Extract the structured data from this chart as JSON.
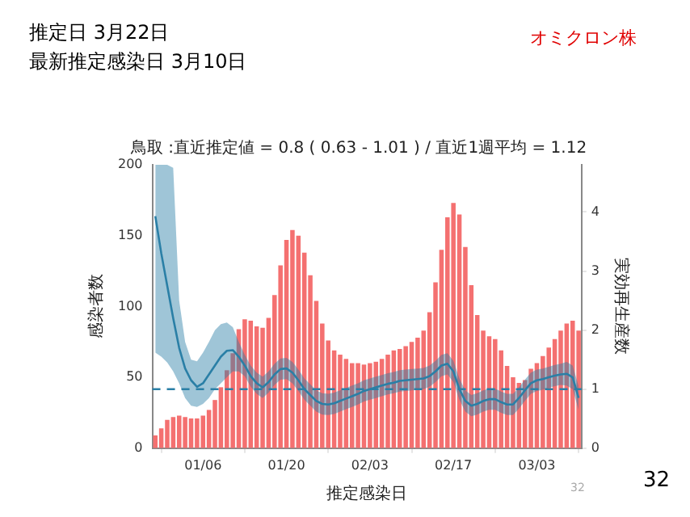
{
  "chart_data": {
    "type": "bar",
    "title": "鳥取 :直近推定値 = 0.8 ( 0.63 - 1.01 ) / 直近1週平均 = 1.12",
    "xlabel": "推定感染日",
    "ylabel": "感染者数",
    "y2label": "実効再生産数",
    "annotations": [
      "推定日  3月22日",
      "最新推定感染日  3月10日",
      "オミクロン株",
      "32",
      "32"
    ],
    "categories": [
      null,
      null,
      null,
      null,
      null,
      null,
      null,
      null,
      "01/06",
      null,
      null,
      null,
      null,
      null,
      null,
      null,
      null,
      null,
      null,
      null,
      null,
      null,
      "01/20",
      null,
      null,
      null,
      null,
      null,
      null,
      null,
      null,
      null,
      null,
      null,
      null,
      null,
      "02/03",
      null,
      null,
      null,
      null,
      null,
      null,
      null,
      null,
      null,
      null,
      null,
      null,
      null,
      "02/17",
      null,
      null,
      null,
      null,
      null,
      null,
      null,
      null,
      null,
      null,
      null,
      null,
      null,
      "03/03",
      null,
      null,
      null,
      null,
      null,
      null,
      null
    ],
    "series": [
      {
        "color": "#f47070",
        "values": [
          9,
          14,
          20,
          22,
          23,
          22,
          21,
          21,
          23,
          27,
          34,
          43,
          55,
          67,
          84,
          91,
          90,
          86,
          85,
          92,
          108,
          129,
          147,
          154,
          150,
          138,
          122,
          104,
          88,
          76,
          69,
          66,
          63,
          60,
          60,
          59,
          60,
          61,
          63,
          66,
          69,
          70,
          72,
          75,
          78,
          83,
          96,
          117,
          140,
          163,
          173,
          165,
          142,
          115,
          94,
          83,
          79,
          77,
          69,
          58,
          50,
          46,
          48,
          56,
          60,
          65,
          71,
          77,
          83,
          88,
          90,
          83
        ]
      },
      {
        "type": "line",
        "axis": "y2",
        "color": "#2a7fa6",
        "values": [
          3.93,
          3.3,
          2.75,
          2.2,
          1.7,
          1.35,
          1.15,
          1.04,
          1.1,
          1.25,
          1.4,
          1.55,
          1.65,
          1.66,
          1.55,
          1.4,
          1.22,
          1.1,
          1.03,
          1.12,
          1.25,
          1.34,
          1.35,
          1.28,
          1.15,
          1.0,
          0.9,
          0.8,
          0.75,
          0.74,
          0.76,
          0.8,
          0.84,
          0.88,
          0.92,
          0.97,
          1.0,
          1.03,
          1.06,
          1.09,
          1.11,
          1.14,
          1.15,
          1.16,
          1.17,
          1.18,
          1.22,
          1.3,
          1.4,
          1.43,
          1.3,
          1.0,
          0.8,
          0.72,
          0.75,
          0.8,
          0.83,
          0.83,
          0.78,
          0.74,
          0.74,
          0.85,
          0.98,
          1.1,
          1.15,
          1.17,
          1.2,
          1.23,
          1.25,
          1.26,
          1.2,
          0.85
        ],
        "lower": [
          1.62,
          1.55,
          1.45,
          1.3,
          1.1,
          0.85,
          0.72,
          0.7,
          0.75,
          0.85,
          1.0,
          1.1,
          1.2,
          1.3,
          1.3,
          1.22,
          1.04,
          0.92,
          0.85,
          0.94,
          1.07,
          1.16,
          1.17,
          1.1,
          0.97,
          0.82,
          0.72,
          0.62,
          0.57,
          0.56,
          0.58,
          0.62,
          0.66,
          0.7,
          0.74,
          0.79,
          0.82,
          0.85,
          0.88,
          0.91,
          0.93,
          0.96,
          0.97,
          0.98,
          0.99,
          1.0,
          1.04,
          1.12,
          1.22,
          1.25,
          1.12,
          0.82,
          0.62,
          0.54,
          0.57,
          0.62,
          0.65,
          0.65,
          0.6,
          0.56,
          0.56,
          0.67,
          0.8,
          0.92,
          0.97,
          0.99,
          1.02,
          1.05,
          1.07,
          1.06,
          1.0,
          0.65
        ],
        "upper": [
          4.8,
          4.8,
          4.8,
          4.75,
          2.5,
          1.8,
          1.5,
          1.47,
          1.62,
          1.8,
          2.0,
          2.1,
          2.13,
          2.05,
          1.8,
          1.58,
          1.4,
          1.28,
          1.21,
          1.3,
          1.43,
          1.52,
          1.53,
          1.46,
          1.33,
          1.18,
          1.08,
          0.98,
          0.93,
          0.92,
          0.94,
          0.98,
          1.02,
          1.06,
          1.1,
          1.15,
          1.18,
          1.21,
          1.24,
          1.27,
          1.29,
          1.32,
          1.33,
          1.34,
          1.35,
          1.36,
          1.4,
          1.48,
          1.58,
          1.61,
          1.48,
          1.18,
          0.98,
          0.9,
          0.93,
          0.98,
          1.01,
          1.01,
          0.96,
          0.92,
          0.92,
          1.03,
          1.16,
          1.28,
          1.33,
          1.35,
          1.38,
          1.41,
          1.43,
          1.46,
          1.4,
          1.05
        ]
      }
    ],
    "ylim": [
      0,
      200
    ],
    "yticks": [
      0,
      50,
      100,
      150,
      200
    ],
    "y2lim": [
      0,
      4.8
    ],
    "y2ticks": [
      0,
      1,
      2,
      3,
      4
    ],
    "ref_lines": [
      {
        "axis": "y2",
        "value": 1,
        "color": "#2a7fa6",
        "line_style": "dashed"
      }
    ]
  }
}
